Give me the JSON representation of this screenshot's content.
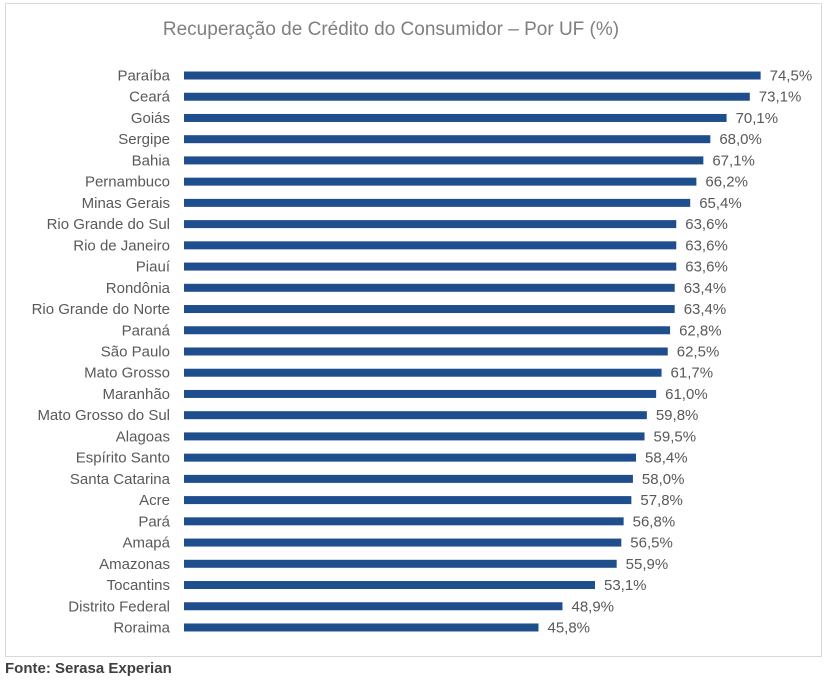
{
  "chart_data": {
    "type": "bar",
    "orientation": "horizontal",
    "title": "Recuperação de Crédito do Consumidor – Por UF (%)",
    "categories": [
      "Paraíba",
      "Ceará",
      "Goiás",
      "Sergipe",
      "Bahia",
      "Pernambuco",
      "Minas Gerais",
      "Rio Grande do Sul",
      "Rio de Janeiro",
      "Piauí",
      "Rondônia",
      "Rio Grande do Norte",
      "Paraná",
      "São Paulo",
      "Mato Grosso",
      "Maranhão",
      "Mato Grosso do Sul",
      "Alagoas",
      "Espírito Santo",
      "Santa Catarina",
      "Acre",
      "Pará",
      "Amapá",
      "Amazonas",
      "Tocantins",
      "Distrito Federal",
      "Roraima"
    ],
    "values": [
      74.5,
      73.1,
      70.1,
      68.0,
      67.1,
      66.2,
      65.4,
      63.6,
      63.6,
      63.6,
      63.4,
      63.4,
      62.8,
      62.5,
      61.7,
      61.0,
      59.8,
      59.5,
      58.4,
      58.0,
      57.8,
      56.8,
      56.5,
      55.9,
      53.1,
      48.9,
      45.8
    ],
    "value_labels": [
      "74,5%",
      "73,1%",
      "70,1%",
      "68,0%",
      "67,1%",
      "66,2%",
      "65,4%",
      "63,6%",
      "63,6%",
      "63,6%",
      "63,4%",
      "63,4%",
      "62,8%",
      "62,5%",
      "61,7%",
      "61,0%",
      "59,8%",
      "59,5%",
      "58,4%",
      "58,0%",
      "57,8%",
      "56,8%",
      "56,5%",
      "55,9%",
      "53,1%",
      "48,9%",
      "45,8%"
    ],
    "xlim": [
      0,
      75
    ],
    "grid": false,
    "bar_color": "#1f4e8c"
  },
  "footer": {
    "source": "Fonte: Serasa Experian"
  }
}
